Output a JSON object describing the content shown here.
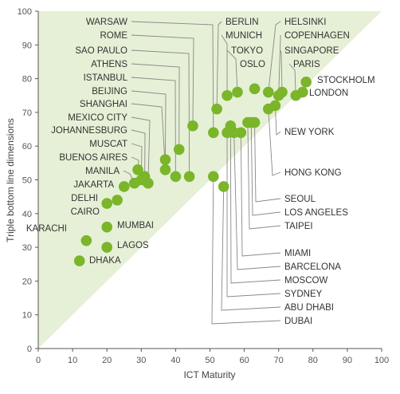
{
  "chart_data": {
    "type": "scatter",
    "xlabel": "ICT Maturity",
    "ylabel": "Triple bottom line dimensions",
    "xlim": [
      0,
      100
    ],
    "ylim": [
      0,
      100
    ],
    "x_ticks": [
      "0",
      "10",
      "20",
      "30",
      "40",
      "50",
      "60",
      "70",
      "80",
      "90",
      "100"
    ],
    "y_ticks": [
      "0",
      "10",
      "20",
      "30",
      "40",
      "50",
      "60",
      "70",
      "80",
      "90",
      "100"
    ],
    "grid": false,
    "shaded_region": "above the x = y diagonal",
    "colors": {
      "marker": "#7ab52a",
      "shade": "#e6f0d6",
      "axis": "#555555",
      "leader": "#888888"
    },
    "points": [
      {
        "label": "WARSAW",
        "x": 51,
        "y": 64
      },
      {
        "label": "ROME",
        "x": 45,
        "y": 66
      },
      {
        "label": "SAO PAULO",
        "x": 44,
        "y": 51
      },
      {
        "label": "ATHENS",
        "x": 41,
        "y": 59
      },
      {
        "label": "ISTANBUL",
        "x": 40,
        "y": 51
      },
      {
        "label": "BEIJING",
        "x": 37,
        "y": 56
      },
      {
        "label": "SHANGHAI",
        "x": 37,
        "y": 53
      },
      {
        "label": "MEXICO CITY",
        "x": 32,
        "y": 49
      },
      {
        "label": "JOHANNESBURG",
        "x": 31,
        "y": 51
      },
      {
        "label": "MUSCAT",
        "x": 30,
        "y": 50
      },
      {
        "label": "BUENOS AIRES",
        "x": 29,
        "y": 53
      },
      {
        "label": "MANILA",
        "x": 28,
        "y": 49
      },
      {
        "label": "JAKARTA",
        "x": 25,
        "y": 48
      },
      {
        "label": "DELHI",
        "x": 20,
        "y": 43
      },
      {
        "label": "CAIRO",
        "x": 23,
        "y": 44
      },
      {
        "label": "MUMBAI",
        "x": 20,
        "y": 36
      },
      {
        "label": "KARACHI",
        "x": 14,
        "y": 32
      },
      {
        "label": "LAGOS",
        "x": 20,
        "y": 30
      },
      {
        "label": "DHAKA",
        "x": 12,
        "y": 26
      },
      {
        "label": "BERLIN",
        "x": 52,
        "y": 71
      },
      {
        "label": "MUNICH",
        "x": 55,
        "y": 75
      },
      {
        "label": "TOKYO",
        "x": 58,
        "y": 76
      },
      {
        "label": "OSLO",
        "x": 63,
        "y": 77
      },
      {
        "label": "HELSINKI",
        "x": 67,
        "y": 76
      },
      {
        "label": "COPENHAGEN",
        "x": 70,
        "y": 75
      },
      {
        "label": "SINGAPORE",
        "x": 71,
        "y": 76
      },
      {
        "label": "PARIS",
        "x": 75,
        "y": 75
      },
      {
        "label": "STOCKHOLM",
        "x": 78,
        "y": 79
      },
      {
        "label": "LONDON",
        "x": 77,
        "y": 76
      },
      {
        "label": "NEW YORK",
        "x": 69,
        "y": 72
      },
      {
        "label": "HONG KONG",
        "x": 67,
        "y": 71
      },
      {
        "label": "SEOUL",
        "x": 63,
        "y": 67
      },
      {
        "label": "LOS ANGELES",
        "x": 62,
        "y": 67
      },
      {
        "label": "TAIPEI",
        "x": 61,
        "y": 67
      },
      {
        "label": "MIAMI",
        "x": 59,
        "y": 64
      },
      {
        "label": "BARCELONA",
        "x": 57,
        "y": 64
      },
      {
        "label": "MOSCOW",
        "x": 56,
        "y": 66
      },
      {
        "label": "SYDNEY",
        "x": 55,
        "y": 64
      },
      {
        "label": "ABU DHABI",
        "x": 54,
        "y": 48
      },
      {
        "label": "DUBAI",
        "x": 51,
        "y": 51
      }
    ]
  }
}
